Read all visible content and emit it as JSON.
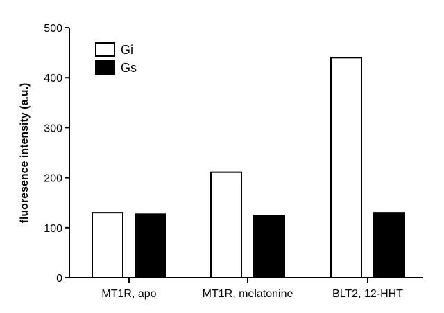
{
  "chart_data": {
    "type": "bar",
    "title": "",
    "xlabel": "",
    "ylabel": "fluoresence intensity (a.u.)",
    "ylim": [
      0,
      500
    ],
    "yticks": [
      0,
      100,
      200,
      300,
      400,
      500
    ],
    "categories": [
      "MT1R, apo",
      "MT1R, melatonine",
      "BLT2, 12-HHT"
    ],
    "series": [
      {
        "name": "Gi",
        "values": [
          130,
          211,
          440
        ],
        "fill": "#ffffff",
        "stroke": "#000000"
      },
      {
        "name": "Gs",
        "values": [
          127,
          124,
          130
        ],
        "fill": "#000000",
        "stroke": "#000000"
      }
    ],
    "legend": {
      "position": "top-left"
    },
    "grid": false
  }
}
